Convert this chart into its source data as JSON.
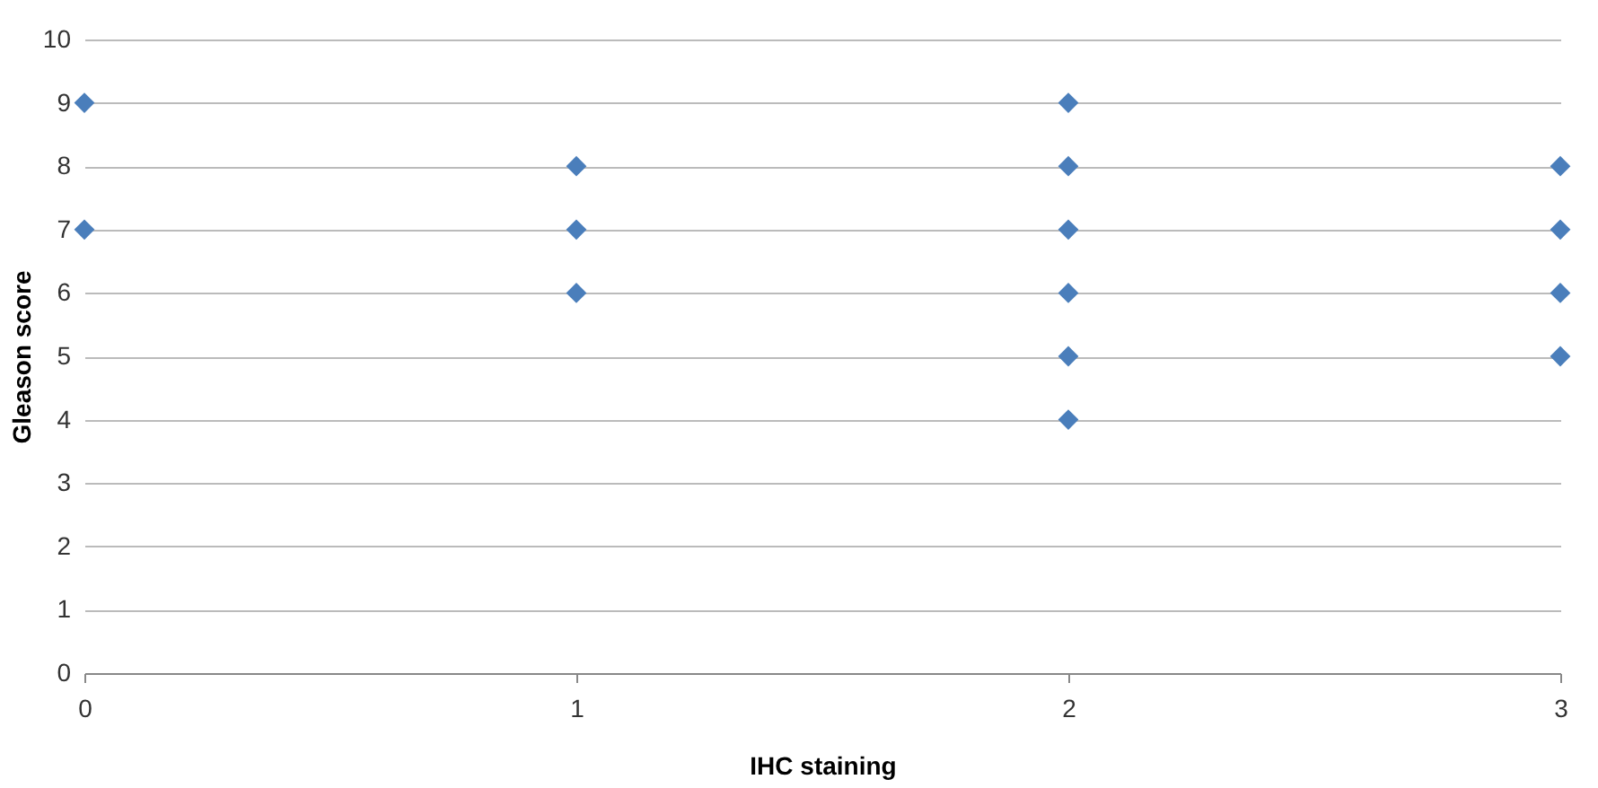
{
  "chart_data": {
    "type": "scatter",
    "xlabel": "IHC staining",
    "ylabel": "Gleason score",
    "series": [
      {
        "color": "#4a7ebb",
        "x": [
          0,
          0,
          1,
          1,
          1,
          2,
          2,
          2,
          2,
          2,
          2,
          3,
          3,
          3,
          3
        ],
        "values": [
          9,
          7,
          8,
          7,
          6,
          9,
          8,
          7,
          6,
          5,
          4,
          8,
          7,
          6,
          5
        ]
      }
    ],
    "xlim": [
      0,
      3
    ],
    "xticks": [
      0,
      1,
      2,
      3
    ],
    "ylim": [
      0,
      10
    ],
    "yticks": [
      0,
      1,
      2,
      3,
      4,
      5,
      6,
      7,
      8,
      9,
      10
    ],
    "grid": "y",
    "marker": "diamond"
  }
}
